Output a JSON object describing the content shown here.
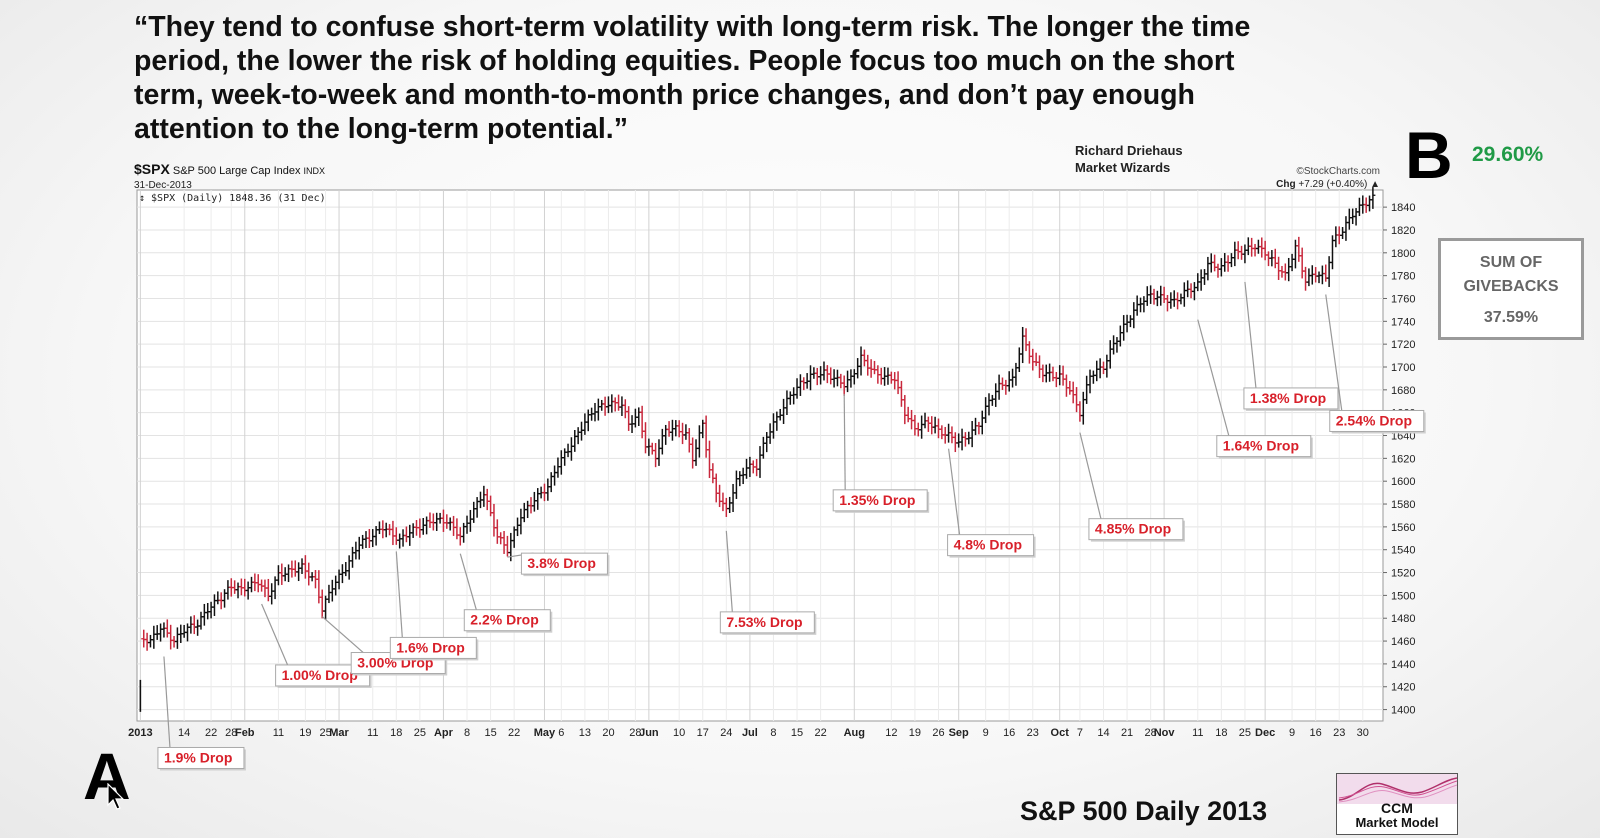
{
  "quote": "“They tend to confuse short-term volatility with long-term risk. The longer the time period, the lower the risk of holding equities. People focus too much on the short term, week-to-week and month-to-month price changes, and don’t pay enough attention to the long-term potential.”",
  "author": {
    "name": "Richard Driehaus",
    "source": "Market Wizards"
  },
  "label_b": "B",
  "label_a": "A",
  "b_percent": "29.60%",
  "sum_box": {
    "title_line1": "SUM OF",
    "title_line2": "GIVEBACKS",
    "value": "37.59%"
  },
  "footer_title": "S&P 500 Daily 2013",
  "logo": {
    "line1": "CCM",
    "line2": "Market Model"
  },
  "colors": {
    "up": "#111111",
    "down": "#c8283c",
    "green_pct": "#1f9a46",
    "drop_text": "#d8202a"
  },
  "chart_header": {
    "symbol": "$SPX",
    "name": "S&P 500 Large Cap Index",
    "exchange": "INDX",
    "date": "31-Dec-2013",
    "series_label": "$SPX (Daily) 1848.36 (31 Dec)",
    "source": "©StockCharts.com",
    "chg_label": "Chg",
    "chg_value": "+7.29 (+0.40%)"
  },
  "chart_data": {
    "type": "line",
    "title": "",
    "xlabel": "",
    "ylabel": "",
    "grid": true,
    "ylim": [
      1390,
      1855
    ],
    "y_ticks": [
      1400,
      1420,
      1440,
      1460,
      1480,
      1500,
      1520,
      1540,
      1560,
      1580,
      1600,
      1620,
      1640,
      1660,
      1680,
      1700,
      1720,
      1740,
      1760,
      1780,
      1800,
      1820,
      1840
    ],
    "x_ticks": [
      {
        "d": 1,
        "label": "2013",
        "bold": true
      },
      {
        "d": 14,
        "label": "14"
      },
      {
        "d": 22,
        "label": "22"
      },
      {
        "d": 28,
        "label": "28"
      },
      {
        "d": 32,
        "label": "Feb",
        "bold": true
      },
      {
        "d": 42,
        "label": "11"
      },
      {
        "d": 50,
        "label": "19"
      },
      {
        "d": 56,
        "label": "25"
      },
      {
        "d": 60,
        "label": "Mar",
        "bold": true
      },
      {
        "d": 70,
        "label": "11"
      },
      {
        "d": 77,
        "label": "18"
      },
      {
        "d": 84,
        "label": "25"
      },
      {
        "d": 91,
        "label": "Apr",
        "bold": true
      },
      {
        "d": 98,
        "label": "8"
      },
      {
        "d": 105,
        "label": "15"
      },
      {
        "d": 112,
        "label": "22"
      },
      {
        "d": 121,
        "label": "May",
        "bold": true
      },
      {
        "d": 126,
        "label": "6"
      },
      {
        "d": 133,
        "label": "13"
      },
      {
        "d": 140,
        "label": "20"
      },
      {
        "d": 148,
        "label": "28"
      },
      {
        "d": 152,
        "label": "Jun",
        "bold": true
      },
      {
        "d": 161,
        "label": "10"
      },
      {
        "d": 168,
        "label": "17"
      },
      {
        "d": 175,
        "label": "24"
      },
      {
        "d": 182,
        "label": "Jul",
        "bold": true
      },
      {
        "d": 189,
        "label": "8"
      },
      {
        "d": 196,
        "label": "15"
      },
      {
        "d": 203,
        "label": "22"
      },
      {
        "d": 213,
        "label": "Aug",
        "bold": true
      },
      {
        "d": 224,
        "label": "12"
      },
      {
        "d": 231,
        "label": "19"
      },
      {
        "d": 238,
        "label": "26"
      },
      {
        "d": 244,
        "label": "Sep",
        "bold": true
      },
      {
        "d": 252,
        "label": "9"
      },
      {
        "d": 259,
        "label": "16"
      },
      {
        "d": 266,
        "label": "23"
      },
      {
        "d": 274,
        "label": "Oct",
        "bold": true
      },
      {
        "d": 280,
        "label": "7"
      },
      {
        "d": 287,
        "label": "14"
      },
      {
        "d": 294,
        "label": "21"
      },
      {
        "d": 301,
        "label": "28"
      },
      {
        "d": 305,
        "label": "Nov",
        "bold": true
      },
      {
        "d": 315,
        "label": "11"
      },
      {
        "d": 322,
        "label": "18"
      },
      {
        "d": 329,
        "label": "25"
      },
      {
        "d": 335,
        "label": "Dec",
        "bold": true
      },
      {
        "d": 343,
        "label": "9"
      },
      {
        "d": 350,
        "label": "16"
      },
      {
        "d": 357,
        "label": "23"
      },
      {
        "d": 364,
        "label": "30"
      }
    ],
    "series": [
      {
        "values": [
          [
            2,
            1462
          ],
          [
            4,
            1460
          ],
          [
            7,
            1472
          ],
          [
            11,
            1460
          ],
          [
            14,
            1470
          ],
          [
            18,
            1475
          ],
          [
            21,
            1488
          ],
          [
            25,
            1498
          ],
          [
            28,
            1508
          ],
          [
            31,
            1505
          ],
          [
            36,
            1512
          ],
          [
            39,
            1500
          ],
          [
            42,
            1518
          ],
          [
            46,
            1522
          ],
          [
            49,
            1525
          ],
          [
            53,
            1512
          ],
          [
            55,
            1488
          ],
          [
            58,
            1508
          ],
          [
            62,
            1524
          ],
          [
            66,
            1546
          ],
          [
            69,
            1550
          ],
          [
            73,
            1560
          ],
          [
            76,
            1553
          ],
          [
            78,
            1548
          ],
          [
            81,
            1556
          ],
          [
            84,
            1560
          ],
          [
            88,
            1566
          ],
          [
            92,
            1565
          ],
          [
            96,
            1552
          ],
          [
            100,
            1575
          ],
          [
            103,
            1590
          ],
          [
            107,
            1552
          ],
          [
            110,
            1540
          ],
          [
            114,
            1570
          ],
          [
            118,
            1584
          ],
          [
            122,
            1595
          ],
          [
            125,
            1615
          ],
          [
            129,
            1632
          ],
          [
            133,
            1652
          ],
          [
            136,
            1663
          ],
          [
            140,
            1668
          ],
          [
            144,
            1667
          ],
          [
            146,
            1650
          ],
          [
            149,
            1658
          ],
          [
            151,
            1632
          ],
          [
            154,
            1622
          ],
          [
            157,
            1645
          ],
          [
            160,
            1646
          ],
          [
            163,
            1641
          ],
          [
            165,
            1620
          ],
          [
            168,
            1650
          ],
          [
            170,
            1610
          ],
          [
            172,
            1590
          ],
          [
            175,
            1574
          ],
          [
            178,
            1600
          ],
          [
            181,
            1612
          ],
          [
            184,
            1613
          ],
          [
            187,
            1640
          ],
          [
            191,
            1660
          ],
          [
            194,
            1675
          ],
          [
            197,
            1685
          ],
          [
            200,
            1692
          ],
          [
            204,
            1695
          ],
          [
            207,
            1690
          ],
          [
            210,
            1685
          ],
          [
            212,
            1690
          ],
          [
            215,
            1708
          ],
          [
            219,
            1695
          ],
          [
            222,
            1691
          ],
          [
            225,
            1690
          ],
          [
            228,
            1660
          ],
          [
            231,
            1646
          ],
          [
            235,
            1652
          ],
          [
            238,
            1644
          ],
          [
            241,
            1640
          ],
          [
            244,
            1634
          ],
          [
            247,
            1640
          ],
          [
            250,
            1650
          ],
          [
            253,
            1670
          ],
          [
            256,
            1683
          ],
          [
            260,
            1689
          ],
          [
            263,
            1725
          ],
          [
            266,
            1705
          ],
          [
            269,
            1695
          ],
          [
            272,
            1692
          ],
          [
            274,
            1692
          ],
          [
            277,
            1680
          ],
          [
            280,
            1660
          ],
          [
            283,
            1693
          ],
          [
            287,
            1700
          ],
          [
            290,
            1720
          ],
          [
            294,
            1740
          ],
          [
            298,
            1757
          ],
          [
            301,
            1763
          ],
          [
            305,
            1760
          ],
          [
            308,
            1757
          ],
          [
            311,
            1765
          ],
          [
            315,
            1772
          ],
          [
            318,
            1790
          ],
          [
            322,
            1787
          ],
          [
            326,
            1800
          ],
          [
            329,
            1802
          ],
          [
            332,
            1806
          ],
          [
            335,
            1800
          ],
          [
            338,
            1790
          ],
          [
            341,
            1780
          ],
          [
            344,
            1805
          ],
          [
            347,
            1776
          ],
          [
            350,
            1782
          ],
          [
            353,
            1778
          ],
          [
            355,
            1810
          ],
          [
            358,
            1820
          ],
          [
            361,
            1834
          ],
          [
            364,
            1842
          ],
          [
            367,
            1848
          ]
        ]
      }
    ],
    "drop_annotations": [
      {
        "label": "1.9% Drop",
        "d": 8,
        "v": 1450
      },
      {
        "label": "1.00% Drop",
        "d": 37,
        "v": 1496
      },
      {
        "label": "3.00% Drop",
        "d": 55,
        "v": 1485
      },
      {
        "label": "1.6% Drop",
        "d": 77,
        "v": 1542
      },
      {
        "label": "2.2% Drop",
        "d": 96,
        "v": 1540
      },
      {
        "label": "3.8% Drop",
        "d": 110,
        "v": 1537
      },
      {
        "label": "7.53% Drop",
        "d": 175,
        "v": 1560
      },
      {
        "label": "1.35% Drop",
        "d": 210,
        "v": 1680
      },
      {
        "label": "4.8% Drop",
        "d": 241,
        "v": 1632
      },
      {
        "label": "4.85% Drop",
        "d": 280,
        "v": 1646
      },
      {
        "label": "1.64% Drop",
        "d": 315,
        "v": 1745
      },
      {
        "label": "1.38% Drop",
        "d": 329,
        "v": 1778
      },
      {
        "label": "2.54% Drop",
        "d": 353,
        "v": 1767
      }
    ]
  }
}
